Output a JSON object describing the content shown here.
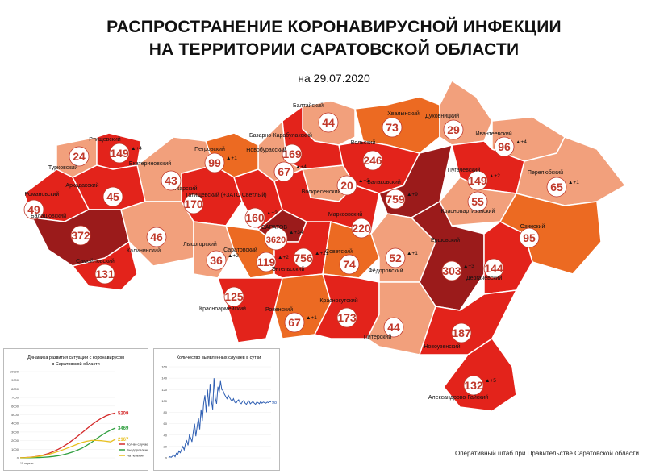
{
  "title_line1": "РАСПРОСТРАНЕНИЕ КОРОНАВИРУСНОЙ ИНФЕКЦИИ",
  "title_line2": "НА ТЕРРИТОРИИ САРАТОВСКОЙ ОБЛАСТИ",
  "date": "на 29.07.2020",
  "footer": "Оперативный штаб при Правительстве Саратовской области",
  "colors": {
    "dark": "#9b1b1b",
    "red": "#e3231b",
    "orange": "#ec6a22",
    "light": "#f2a07c",
    "outline": "#ffffff"
  },
  "districts": [
    {
      "name": "Балтайский",
      "cases": "44",
      "increase": "",
      "tone": "light"
    },
    {
      "name": "Хвалынский",
      "cases": "73",
      "increase": "",
      "tone": "orange"
    },
    {
      "name": "Духовницкий",
      "cases": "29",
      "increase": "",
      "tone": "light"
    },
    {
      "name": "Ивантеевский",
      "cases": "96",
      "increase": "4",
      "tone": "light"
    },
    {
      "name": "Вольский",
      "cases": "246",
      "increase": "",
      "tone": "red"
    },
    {
      "name": "Воскресенский",
      "cases": "20",
      "increase": "2",
      "tone": "light"
    },
    {
      "name": "Базарно-Карабулакский",
      "cases": "169",
      "increase": "",
      "tone": "red"
    },
    {
      "name": "Новобурасский",
      "cases": "67",
      "increase": "4",
      "tone": "light"
    },
    {
      "name": "Петровский",
      "cases": "99",
      "increase": "1",
      "tone": "orange"
    },
    {
      "name": "Аткарский",
      "cases": "170",
      "increase": "",
      "tone": "red"
    },
    {
      "name": "Екатериновский",
      "cases": "43",
      "increase": "",
      "tone": "light"
    },
    {
      "name": "Турковский",
      "cases": "24",
      "increase": "",
      "tone": "light"
    },
    {
      "name": "Ртищевский",
      "cases": "149",
      "increase": "4",
      "tone": "red"
    },
    {
      "name": "Аркадакский",
      "cases": "45",
      "increase": "",
      "tone": "red"
    },
    {
      "name": "Романовский",
      "cases": "49",
      "increase": "",
      "tone": "red"
    },
    {
      "name": "Балашовский",
      "cases": "372",
      "increase": "",
      "tone": "dark"
    },
    {
      "name": "Самойловский",
      "cases": "131",
      "increase": "",
      "tone": "red"
    },
    {
      "name": "Калининский",
      "cases": "46",
      "increase": "",
      "tone": "light"
    },
    {
      "name": "Татищевский (+ЗАТО Светлый)",
      "cases": "160",
      "increase": "2",
      "tone": "red"
    },
    {
      "name": "Лысогорский",
      "cases": "36",
      "increase": "2",
      "tone": "light"
    },
    {
      "name": "Саратовский",
      "cases": "119",
      "increase": "2",
      "tone": "orange"
    },
    {
      "name": "САРАТОВ",
      "cases": "3620",
      "increase": "34",
      "tone": "dark"
    },
    {
      "name": "Энгельсский",
      "cases": "756",
      "increase": "21",
      "tone": "red"
    },
    {
      "name": "Марксовский",
      "cases": "220",
      "increase": "",
      "tone": "red"
    },
    {
      "name": "Балаковский",
      "cases": "759",
      "increase": "9",
      "tone": "dark"
    },
    {
      "name": "Пугачевский",
      "cases": "149",
      "increase": "2",
      "tone": "red"
    },
    {
      "name": "Перелюбский",
      "cases": "65",
      "increase": "1",
      "tone": "light"
    },
    {
      "name": "Краснопартизанский",
      "cases": "55",
      "increase": "",
      "tone": "light"
    },
    {
      "name": "Озинский",
      "cases": "95",
      "increase": "",
      "tone": "orange"
    },
    {
      "name": "Советский",
      "cases": "74",
      "increase": "",
      "tone": "orange"
    },
    {
      "name": "Фёдоровский",
      "cases": "52",
      "increase": "1",
      "tone": "light"
    },
    {
      "name": "Ершовский",
      "cases": "303",
      "increase": "3",
      "tone": "dark"
    },
    {
      "name": "Дергачевский",
      "cases": "144",
      "increase": "",
      "tone": "red"
    },
    {
      "name": "Красноармейский",
      "cases": "125",
      "increase": "",
      "tone": "red"
    },
    {
      "name": "Ровенский",
      "cases": "67",
      "increase": "1",
      "tone": "orange"
    },
    {
      "name": "Краснокутский",
      "cases": "173",
      "increase": "",
      "tone": "red"
    },
    {
      "name": "Питерский",
      "cases": "44",
      "increase": "",
      "tone": "light"
    },
    {
      "name": "Новоузенский",
      "cases": "187",
      "increase": "",
      "tone": "red"
    },
    {
      "name": "Александрово-Гайский",
      "cases": "132",
      "increase": "5",
      "tone": "red"
    }
  ],
  "chart1": {
    "title_line1": "Динамика развития ситуации с коронавирусом",
    "title_line2": "в Саратовской области",
    "y_ticks": [
      "10000",
      "9000",
      "8000",
      "7000",
      "6000",
      "5000",
      "4000",
      "3000",
      "2000",
      "1000",
      "0"
    ],
    "x_label_sample": "15 апреля",
    "legend": [
      "Кол-во случаев",
      "Выздоровление",
      "На лечении"
    ],
    "end_labels": [
      "5209",
      "3469",
      "2167"
    ],
    "line_colors": [
      "#d42a2a",
      "#2e9e3e",
      "#e8c020"
    ]
  },
  "chart_data": [
    {
      "type": "line",
      "title": "Динамика развития ситуации с коронавирусом в Саратовской области",
      "ylim": [
        0,
        10000
      ],
      "x": [
        0,
        1,
        2,
        3,
        4,
        5,
        6,
        7,
        8,
        9,
        10,
        11,
        12,
        13,
        14,
        15,
        16,
        17,
        18,
        19,
        20
      ],
      "series": [
        {
          "name": "Кол-во случаев",
          "values": [
            10,
            30,
            70,
            130,
            220,
            350,
            520,
            740,
            1000,
            1300,
            1650,
            2050,
            2480,
            2920,
            3380,
            3820,
            4220,
            4570,
            4860,
            5070,
            5209
          ]
        },
        {
          "name": "Выздоровление",
          "values": [
            0,
            5,
            10,
            20,
            40,
            70,
            110,
            170,
            250,
            360,
            500,
            680,
            890,
            1130,
            1450,
            1800,
            2200,
            2580,
            2930,
            3220,
            3469
          ]
        },
        {
          "name": "На лечении",
          "values": [
            10,
            25,
            60,
            110,
            180,
            280,
            410,
            570,
            750,
            940,
            1150,
            1370,
            1590,
            1790,
            1930,
            2020,
            2020,
            1990,
            1930,
            1850,
            2167
          ]
        }
      ]
    },
    {
      "type": "line",
      "title": "Количество выявленных случаев в сутки",
      "ylim": [
        0,
        160
      ],
      "y_ticks": [
        "160",
        "140",
        "120",
        "100",
        "80",
        "60",
        "40",
        "20",
        "0"
      ],
      "x": [
        0,
        1,
        2,
        3,
        4,
        5,
        6,
        7,
        8,
        9,
        10,
        11,
        12,
        13,
        14,
        15,
        16,
        17,
        18,
        19,
        20,
        21,
        22,
        23,
        24,
        25,
        26,
        27,
        28,
        29,
        30,
        31,
        32,
        33,
        34,
        35,
        36,
        37,
        38,
        39,
        40,
        41,
        42,
        43,
        44,
        45,
        46,
        47,
        48,
        49,
        50,
        51,
        52,
        53,
        54,
        55,
        56,
        57,
        58,
        59,
        60,
        61,
        62,
        63,
        64,
        65,
        66,
        67,
        68,
        69,
        70,
        71,
        72,
        73,
        74,
        75,
        76,
        77,
        78,
        79
      ],
      "series": [
        {
          "name": "",
          "values": [
            0,
            2,
            1,
            3,
            5,
            2,
            8,
            6,
            12,
            9,
            15,
            20,
            14,
            25,
            30,
            22,
            40,
            35,
            28,
            45,
            60,
            38,
            55,
            70,
            50,
            85,
            65,
            95,
            110,
            80,
            120,
            90,
            130,
            100,
            85,
            140,
            105,
            95,
            125,
            115,
            135,
            120,
            118,
            112,
            108,
            104,
            110,
            106,
            102,
            100,
            104,
            98,
            96,
            100,
            102,
            97,
            95,
            99,
            101,
            96,
            94,
            98,
            100,
            95,
            97,
            99,
            96,
            94,
            98,
            97,
            95,
            99,
            96,
            98,
            97,
            96,
            98,
            97,
            99,
            98
          ]
        }
      ],
      "end_label": "98"
    }
  ]
}
